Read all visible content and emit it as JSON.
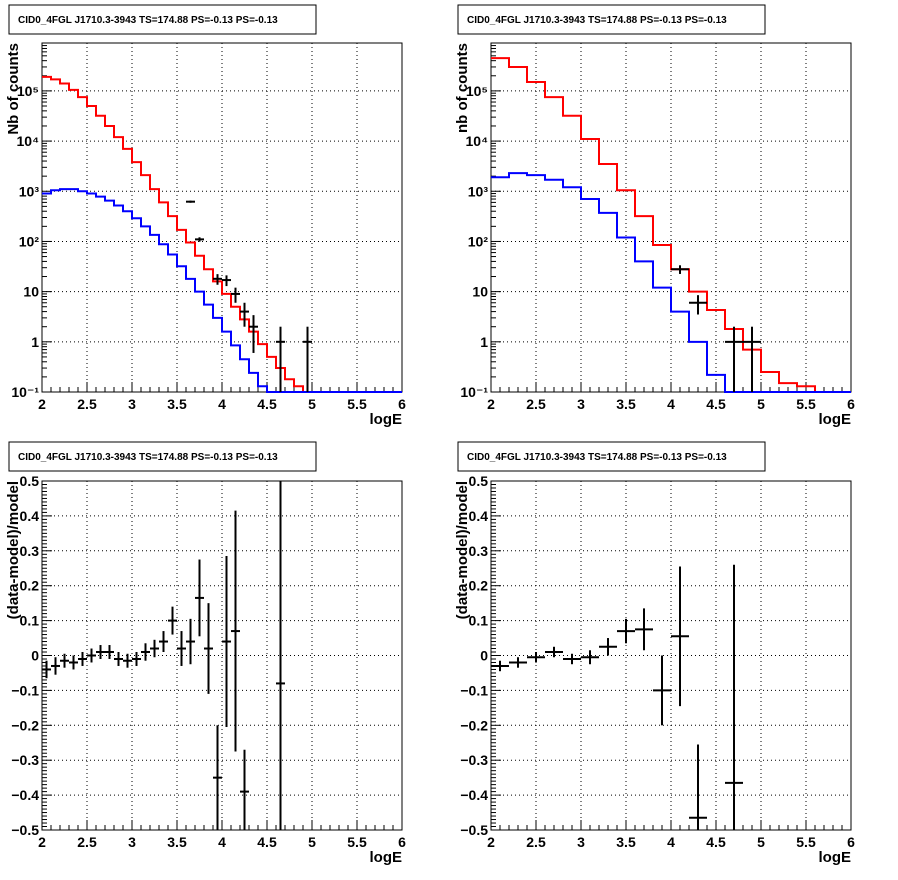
{
  "panels": [
    {
      "title": "CID0_4FGL J1710.3-3943 TS=174.88 PS=-0.13 PS=-0.13",
      "xlabel": "logE",
      "ylabel": "Nb of counts"
    },
    {
      "title": "CID0_4FGL J1710.3-3943 TS=174.88 PS=-0.13 PS=-0.13",
      "xlabel": "logE",
      "ylabel": "nb of counts"
    },
    {
      "title": "CID0_4FGL J1710.3-3943 TS=174.88 PS=-0.13 PS=-0.13",
      "xlabel": "logE",
      "ylabel": "(data-model)/model"
    },
    {
      "title": "CID0_4FGL J1710.3-3943 TS=174.88 PS=-0.13 PS=-0.13",
      "xlabel": "logE",
      "ylabel": "(data-model)/model"
    }
  ],
  "colors": {
    "model_total": "#ff0000",
    "model_component": "#0000ff",
    "data": "#000000",
    "grid": "#000000"
  },
  "chart_data": [
    {
      "type": "line",
      "title": "CID0_4FGL J1710.3-3943 TS=174.88 PS=-0.13 PS=-0.13",
      "xlabel": "logE",
      "ylabel": "Nb of counts",
      "xlim": [
        2,
        6
      ],
      "ylim": [
        0.1,
        900000
      ],
      "yscale": "log",
      "grid": true,
      "xticks": [
        "2",
        "2.5",
        "3",
        "3.5",
        "4",
        "4.5",
        "5",
        "5.5",
        "6"
      ],
      "yticks": [
        "10⁻¹",
        "1",
        "10",
        "10²",
        "10³",
        "10⁴",
        "10⁵"
      ],
      "bin_edges": [
        2.0,
        2.1,
        2.2,
        2.3,
        2.4,
        2.5,
        2.6,
        2.7,
        2.8,
        2.9,
        3.0,
        3.1,
        3.2,
        3.3,
        3.4,
        3.5,
        3.6,
        3.7,
        3.8,
        3.9,
        4.0,
        4.1,
        4.2,
        4.3,
        4.4,
        4.5,
        4.6,
        4.7,
        4.8,
        4.9,
        5.0,
        5.1,
        5.2,
        5.3,
        5.4,
        5.5,
        5.6,
        5.7,
        5.8,
        5.9,
        6.0
      ],
      "series": [
        {
          "kind": "step",
          "color": "#ff0000",
          "values": [
            190000,
            170000,
            140000,
            105000,
            75000,
            50000,
            32000,
            20000,
            12000,
            7000,
            3800,
            2100,
            1100,
            600,
            320,
            170,
            95,
            52,
            28,
            16,
            9,
            5,
            2.8,
            1.6,
            0.9,
            0.5,
            0.3,
            0.18,
            0.13,
            0.1,
            0.1,
            0.1,
            0.1,
            0.1,
            0.1,
            0.1,
            0.1,
            0.1,
            0.1,
            0.1
          ]
        },
        {
          "kind": "step",
          "color": "#0000ff",
          "values": [
            900,
            1050,
            1100,
            1100,
            1000,
            900,
            780,
            650,
            520,
            400,
            290,
            200,
            135,
            88,
            55,
            32,
            18,
            10,
            5.5,
            3,
            1.6,
            0.85,
            0.45,
            0.24,
            0.13,
            0.1,
            0.1,
            0.1,
            0.1,
            0.1,
            0.1,
            0.1,
            0.1,
            0.1,
            0.1,
            0.1,
            0.1,
            0.1,
            0.1,
            0.1
          ]
        }
      ],
      "points": [
        {
          "x": 3.65,
          "y": 620,
          "ey": 30,
          "ex": 0.05
        },
        {
          "x": 3.75,
          "y": 110,
          "ey": 11,
          "ex": 0.05
        },
        {
          "x": 3.95,
          "y": 18,
          "ey": 4.3,
          "ex": 0.05
        },
        {
          "x": 4.05,
          "y": 17,
          "ey": 4.1,
          "ex": 0.05
        },
        {
          "x": 4.15,
          "y": 9,
          "ey": 3,
          "ex": 0.05
        },
        {
          "x": 4.25,
          "y": 4,
          "ey": 2,
          "ex": 0.05
        },
        {
          "x": 4.35,
          "y": 2,
          "ey": 1.4,
          "ex": 0.05
        },
        {
          "x": 4.65,
          "y": 1,
          "ey": 1,
          "ex": 0.05
        },
        {
          "x": 4.95,
          "y": 1,
          "ey": 1,
          "ex": 0.05
        }
      ]
    },
    {
      "type": "line",
      "title": "CID0_4FGL J1710.3-3943 TS=174.88 PS=-0.13 PS=-0.13",
      "xlabel": "logE",
      "ylabel": "nb of counts",
      "xlim": [
        2,
        6
      ],
      "ylim": [
        0.1,
        900000
      ],
      "yscale": "log",
      "grid": true,
      "xticks": [
        "2",
        "2.5",
        "3",
        "3.5",
        "4",
        "4.5",
        "5",
        "5.5",
        "6"
      ],
      "yticks": [
        "10⁻¹",
        "1",
        "10",
        "10²",
        "10³",
        "10⁴",
        "10⁵"
      ],
      "bin_edges": [
        2.0,
        2.2,
        2.4,
        2.6,
        2.8,
        3.0,
        3.2,
        3.4,
        3.6,
        3.8,
        4.0,
        4.2,
        4.4,
        4.6,
        4.8,
        5.0,
        5.2,
        5.4,
        5.6,
        5.8,
        6.0
      ],
      "series": [
        {
          "kind": "step",
          "color": "#ff0000",
          "values": [
            450000,
            300000,
            150000,
            75000,
            32000,
            11000,
            3500,
            1050,
            320,
            85,
            28,
            10,
            4.3,
            1.8,
            0.7,
            0.25,
            0.15,
            0.13,
            0.1,
            0.1
          ]
        },
        {
          "kind": "step",
          "color": "#0000ff",
          "values": [
            1900,
            2300,
            2100,
            1700,
            1200,
            700,
            370,
            120,
            40,
            12,
            4,
            1,
            0.22,
            0.1,
            0.1,
            0.1,
            0.1,
            0.1,
            0.1,
            0.1
          ]
        }
      ],
      "points": [
        {
          "x": 4.1,
          "y": 28,
          "ey": 5.5,
          "ex": 0.1
        },
        {
          "x": 4.3,
          "y": 6,
          "ey": 2.5,
          "ex": 0.1
        },
        {
          "x": 4.7,
          "y": 1,
          "ey": 1,
          "ex": 0.1
        },
        {
          "x": 4.9,
          "y": 1,
          "ey": 1,
          "ex": 0.1
        }
      ]
    },
    {
      "type": "scatter",
      "title": "CID0_4FGL J1710.3-3943 TS=174.88 PS=-0.13 PS=-0.13",
      "xlabel": "logE",
      "ylabel": "(data-model)/model",
      "xlim": [
        2,
        6
      ],
      "ylim": [
        -0.5,
        0.5
      ],
      "grid": true,
      "xticks": [
        "2",
        "2.5",
        "3",
        "3.5",
        "4",
        "4.5",
        "5",
        "5.5",
        "6"
      ],
      "yticks": [
        "−0.5",
        "−0.4",
        "−0.3",
        "−0.2",
        "−0.1",
        "0",
        "0.1",
        "0.2",
        "0.3",
        "0.4",
        "0.5"
      ],
      "points": [
        {
          "x": 2.05,
          "y": -0.04,
          "ey": 0.025,
          "ex": 0.05
        },
        {
          "x": 2.15,
          "y": -0.03,
          "ey": 0.025,
          "ex": 0.05
        },
        {
          "x": 2.25,
          "y": -0.015,
          "ey": 0.02,
          "ex": 0.05
        },
        {
          "x": 2.35,
          "y": -0.02,
          "ey": 0.02,
          "ex": 0.05
        },
        {
          "x": 2.45,
          "y": -0.01,
          "ey": 0.02,
          "ex": 0.05
        },
        {
          "x": 2.55,
          "y": 0.0,
          "ey": 0.02,
          "ex": 0.05
        },
        {
          "x": 2.65,
          "y": 0.01,
          "ey": 0.02,
          "ex": 0.05
        },
        {
          "x": 2.75,
          "y": 0.01,
          "ey": 0.02,
          "ex": 0.05
        },
        {
          "x": 2.85,
          "y": -0.01,
          "ey": 0.02,
          "ex": 0.05
        },
        {
          "x": 2.95,
          "y": -0.015,
          "ey": 0.02,
          "ex": 0.05
        },
        {
          "x": 3.05,
          "y": -0.01,
          "ey": 0.02,
          "ex": 0.05
        },
        {
          "x": 3.15,
          "y": 0.01,
          "ey": 0.025,
          "ex": 0.05
        },
        {
          "x": 3.25,
          "y": 0.02,
          "ey": 0.025,
          "ex": 0.05
        },
        {
          "x": 3.35,
          "y": 0.04,
          "ey": 0.03,
          "ex": 0.05
        },
        {
          "x": 3.45,
          "y": 0.1,
          "ey": 0.04,
          "ex": 0.05
        },
        {
          "x": 3.55,
          "y": 0.02,
          "ey": 0.05,
          "ex": 0.05
        },
        {
          "x": 3.65,
          "y": 0.04,
          "ey": 0.065,
          "ex": 0.05
        },
        {
          "x": 3.75,
          "y": 0.165,
          "ey": 0.11,
          "ex": 0.05
        },
        {
          "x": 3.85,
          "y": 0.02,
          "ey": 0.13,
          "ex": 0.05
        },
        {
          "x": 3.95,
          "y": -0.35,
          "ey": 0.15,
          "ex": 0.05
        },
        {
          "x": 4.05,
          "y": 0.04,
          "ey": 0.245,
          "ex": 0.05
        },
        {
          "x": 4.15,
          "y": 0.07,
          "ey": 0.345,
          "ex": 0.05
        },
        {
          "x": 4.25,
          "y": -0.39,
          "ey": 0.12,
          "ex": 0.05
        },
        {
          "x": 4.65,
          "y": -0.08,
          "ey": 0.6,
          "ex": 0.05
        }
      ]
    },
    {
      "type": "scatter",
      "title": "CID0_4FGL J1710.3-3943 TS=174.88 PS=-0.13 PS=-0.13",
      "xlabel": "logE",
      "ylabel": "(data-model)/model",
      "xlim": [
        2,
        6
      ],
      "ylim": [
        -0.5,
        0.5
      ],
      "grid": true,
      "xticks": [
        "2",
        "2.5",
        "3",
        "3.5",
        "4",
        "4.5",
        "5",
        "5.5",
        "6"
      ],
      "yticks": [
        "−0.5",
        "−0.4",
        "−0.3",
        "−0.2",
        "−0.1",
        "0",
        "0.1",
        "0.2",
        "0.3",
        "0.4",
        "0.5"
      ],
      "points": [
        {
          "x": 2.1,
          "y": -0.03,
          "ey": 0.015,
          "ex": 0.1
        },
        {
          "x": 2.3,
          "y": -0.02,
          "ey": 0.015,
          "ex": 0.1
        },
        {
          "x": 2.5,
          "y": -0.005,
          "ey": 0.015,
          "ex": 0.1
        },
        {
          "x": 2.7,
          "y": 0.01,
          "ey": 0.015,
          "ex": 0.1
        },
        {
          "x": 2.9,
          "y": -0.01,
          "ey": 0.015,
          "ex": 0.1
        },
        {
          "x": 3.1,
          "y": -0.005,
          "ey": 0.02,
          "ex": 0.1
        },
        {
          "x": 3.3,
          "y": 0.025,
          "ey": 0.025,
          "ex": 0.1
        },
        {
          "x": 3.5,
          "y": 0.07,
          "ey": 0.035,
          "ex": 0.1
        },
        {
          "x": 3.7,
          "y": 0.075,
          "ey": 0.06,
          "ex": 0.1
        },
        {
          "x": 3.9,
          "y": -0.1,
          "ey": 0.1,
          "ex": 0.1
        },
        {
          "x": 4.1,
          "y": 0.055,
          "ey": 0.2,
          "ex": 0.1
        },
        {
          "x": 4.3,
          "y": -0.465,
          "ey": 0.21,
          "ex": 0.1
        },
        {
          "x": 4.7,
          "y": -0.365,
          "ey": 0.625,
          "ex": 0.1
        }
      ]
    }
  ]
}
